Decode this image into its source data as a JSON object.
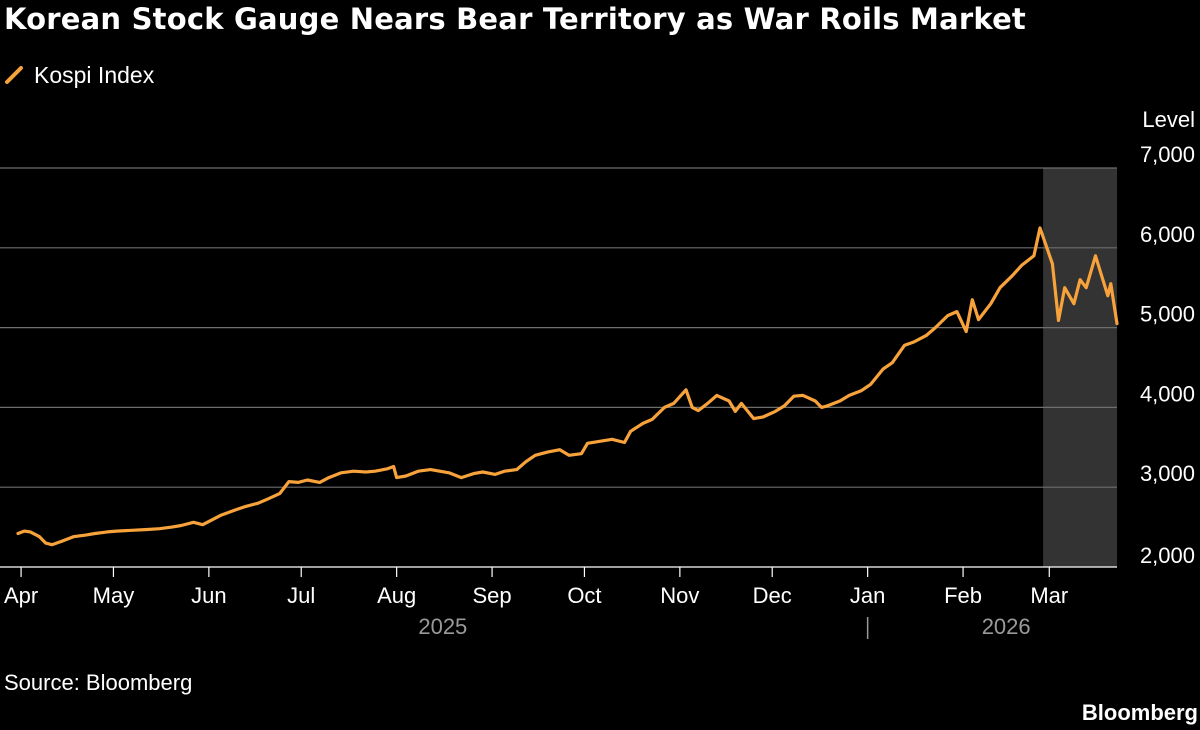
{
  "title": "Korean Stock Gauge Nears Bear Territory as War Roils Market",
  "source": "Source: Bloomberg",
  "brand": "Bloomberg",
  "colors": {
    "background": "#000000",
    "line": "#f7a23b",
    "grid": "#6e6e6e",
    "shade": "#333333",
    "year_label": "#9a9a9a"
  },
  "chart_data": {
    "type": "line",
    "title": "Korean Stock Gauge Nears Bear Territory as War Roils Market",
    "legend": [
      "Kospi Index"
    ],
    "ylabel": "Level",
    "ylim": [
      2000,
      7000
    ],
    "yticks": [
      2000,
      3000,
      4000,
      5000,
      6000,
      7000
    ],
    "ytick_labels": [
      "2,000",
      "3,000",
      "4,000",
      "5,000",
      "6,000",
      "7,000"
    ],
    "xlim": [
      "2025-03-31",
      "2026-03-23"
    ],
    "month_ticks": [
      {
        "label": "Apr",
        "date": "2025-04-01"
      },
      {
        "label": "May",
        "date": "2025-05-01"
      },
      {
        "label": "Jun",
        "date": "2025-06-01"
      },
      {
        "label": "Jul",
        "date": "2025-07-01"
      },
      {
        "label": "Aug",
        "date": "2025-08-01"
      },
      {
        "label": "Sep",
        "date": "2025-09-01"
      },
      {
        "label": "Oct",
        "date": "2025-10-01"
      },
      {
        "label": "Nov",
        "date": "2025-11-01"
      },
      {
        "label": "Dec",
        "date": "2025-12-01"
      },
      {
        "label": "Jan",
        "date": "2026-01-01"
      },
      {
        "label": "Feb",
        "date": "2026-02-01"
      },
      {
        "label": "Mar",
        "date": "2026-03-01"
      }
    ],
    "year_labels": [
      {
        "label": "2025",
        "date": "2025-08-16"
      },
      {
        "label": "2026",
        "date": "2026-02-15"
      }
    ],
    "year_divider": "2026-01-01",
    "shaded_region": {
      "start": "2026-02-27",
      "end": "2026-03-23"
    },
    "legend_placement": "top-left",
    "grid": true,
    "series": [
      {
        "name": "Kospi Index",
        "points": [
          [
            "2025-03-31",
            2420
          ],
          [
            "2025-04-02",
            2450
          ],
          [
            "2025-04-04",
            2440
          ],
          [
            "2025-04-07",
            2380
          ],
          [
            "2025-04-09",
            2300
          ],
          [
            "2025-04-11",
            2280
          ],
          [
            "2025-04-14",
            2320
          ],
          [
            "2025-04-16",
            2350
          ],
          [
            "2025-04-18",
            2380
          ],
          [
            "2025-04-22",
            2400
          ],
          [
            "2025-04-25",
            2420
          ],
          [
            "2025-04-29",
            2440
          ],
          [
            "2025-05-02",
            2450
          ],
          [
            "2025-05-07",
            2460
          ],
          [
            "2025-05-12",
            2470
          ],
          [
            "2025-05-16",
            2480
          ],
          [
            "2025-05-20",
            2500
          ],
          [
            "2025-05-23",
            2520
          ],
          [
            "2025-05-27",
            2560
          ],
          [
            "2025-05-30",
            2530
          ],
          [
            "2025-06-03",
            2610
          ],
          [
            "2025-06-05",
            2650
          ],
          [
            "2025-06-10",
            2720
          ],
          [
            "2025-06-13",
            2760
          ],
          [
            "2025-06-17",
            2800
          ],
          [
            "2025-06-20",
            2850
          ],
          [
            "2025-06-24",
            2920
          ],
          [
            "2025-06-27",
            3070
          ],
          [
            "2025-06-30",
            3060
          ],
          [
            "2025-07-03",
            3090
          ],
          [
            "2025-07-07",
            3060
          ],
          [
            "2025-07-10",
            3120
          ],
          [
            "2025-07-14",
            3180
          ],
          [
            "2025-07-18",
            3200
          ],
          [
            "2025-07-22",
            3190
          ],
          [
            "2025-07-25",
            3200
          ],
          [
            "2025-07-29",
            3230
          ],
          [
            "2025-07-31",
            3260
          ],
          [
            "2025-08-01",
            3120
          ],
          [
            "2025-08-04",
            3140
          ],
          [
            "2025-08-08",
            3200
          ],
          [
            "2025-08-12",
            3220
          ],
          [
            "2025-08-18",
            3180
          ],
          [
            "2025-08-22",
            3120
          ],
          [
            "2025-08-26",
            3170
          ],
          [
            "2025-08-29",
            3190
          ],
          [
            "2025-09-02",
            3160
          ],
          [
            "2025-09-05",
            3200
          ],
          [
            "2025-09-09",
            3220
          ],
          [
            "2025-09-12",
            3320
          ],
          [
            "2025-09-15",
            3400
          ],
          [
            "2025-09-19",
            3440
          ],
          [
            "2025-09-23",
            3470
          ],
          [
            "2025-09-26",
            3400
          ],
          [
            "2025-09-30",
            3420
          ],
          [
            "2025-10-02",
            3550
          ],
          [
            "2025-10-10",
            3600
          ],
          [
            "2025-10-14",
            3560
          ],
          [
            "2025-10-16",
            3700
          ],
          [
            "2025-10-20",
            3800
          ],
          [
            "2025-10-23",
            3850
          ],
          [
            "2025-10-27",
            4000
          ],
          [
            "2025-10-30",
            4050
          ],
          [
            "2025-11-03",
            4220
          ],
          [
            "2025-11-05",
            4000
          ],
          [
            "2025-11-07",
            3960
          ],
          [
            "2025-11-10",
            4050
          ],
          [
            "2025-11-13",
            4150
          ],
          [
            "2025-11-17",
            4080
          ],
          [
            "2025-11-19",
            3950
          ],
          [
            "2025-11-21",
            4050
          ],
          [
            "2025-11-25",
            3860
          ],
          [
            "2025-11-28",
            3880
          ],
          [
            "2025-12-02",
            3950
          ],
          [
            "2025-12-05",
            4020
          ],
          [
            "2025-12-08",
            4140
          ],
          [
            "2025-12-11",
            4150
          ],
          [
            "2025-12-15",
            4080
          ],
          [
            "2025-12-17",
            4000
          ],
          [
            "2025-12-19",
            4020
          ],
          [
            "2025-12-23",
            4080
          ],
          [
            "2025-12-26",
            4150
          ],
          [
            "2025-12-30",
            4210
          ],
          [
            "2026-01-02",
            4290
          ],
          [
            "2026-01-06",
            4480
          ],
          [
            "2026-01-09",
            4560
          ],
          [
            "2026-01-13",
            4780
          ],
          [
            "2026-01-16",
            4820
          ],
          [
            "2026-01-20",
            4900
          ],
          [
            "2026-01-23",
            5000
          ],
          [
            "2026-01-27",
            5150
          ],
          [
            "2026-01-30",
            5200
          ],
          [
            "2026-02-02",
            4950
          ],
          [
            "2026-02-04",
            5350
          ],
          [
            "2026-02-06",
            5100
          ],
          [
            "2026-02-10",
            5300
          ],
          [
            "2026-02-13",
            5500
          ],
          [
            "2026-02-17",
            5650
          ],
          [
            "2026-02-20",
            5780
          ],
          [
            "2026-02-24",
            5900
          ],
          [
            "2026-02-26",
            6250
          ],
          [
            "2026-03-02",
            5800
          ],
          [
            "2026-03-04",
            5090
          ],
          [
            "2026-03-06",
            5500
          ],
          [
            "2026-03-09",
            5300
          ],
          [
            "2026-03-11",
            5600
          ],
          [
            "2026-03-13",
            5500
          ],
          [
            "2026-03-16",
            5900
          ],
          [
            "2026-03-18",
            5650
          ],
          [
            "2026-03-20",
            5400
          ],
          [
            "2026-03-21",
            5550
          ],
          [
            "2026-03-22",
            5300
          ],
          [
            "2026-03-23",
            5050
          ]
        ]
      }
    ]
  }
}
